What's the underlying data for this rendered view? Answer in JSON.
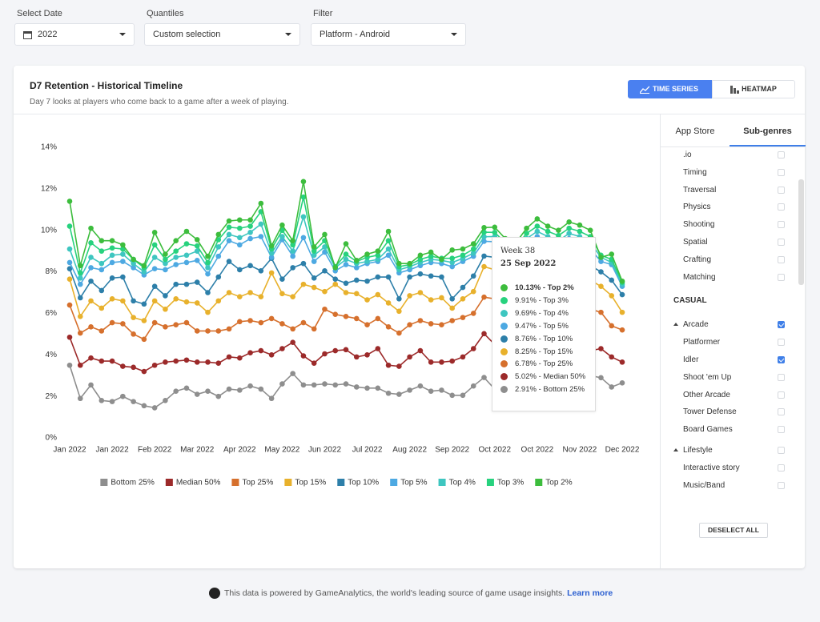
{
  "filters": [
    {
      "label": "Select Date",
      "value": "2022"
    },
    {
      "label": "Quantiles",
      "value": "Custom selection"
    },
    {
      "label": "Filter",
      "value": "Platform - Android"
    }
  ],
  "card": {
    "title": "D7 Retention - Historical Timeline",
    "subtitle": "Day 7 looks at players who come back to a game after a week of playing.",
    "buttons": [
      "TIME SERIES",
      "HEATMAP"
    ]
  },
  "chart_data": {
    "type": "line",
    "categories": [
      "Jan 2022",
      null,
      null,
      null,
      "Jan 2022",
      null,
      null,
      null,
      "Feb 2022",
      null,
      null,
      null,
      "Mar 2022",
      null,
      null,
      null,
      "Apr 2022",
      null,
      null,
      null,
      "May 2022",
      null,
      null,
      null,
      "Jun 2022",
      null,
      null,
      null,
      "Jul 2022",
      null,
      null,
      null,
      "Aug 2022",
      null,
      null,
      null,
      "Sep 2022",
      null,
      null,
      null,
      "Oct 2022",
      null,
      null,
      null,
      "Oct 2022",
      null,
      null,
      null,
      "Nov 2022",
      null,
      null,
      null,
      "Dec 2022"
    ],
    "ylim": [
      0,
      14
    ],
    "yticks": [
      {
        "value": 0,
        "label": "0%"
      },
      {
        "value": 2,
        "label": "2%"
      },
      {
        "value": 4,
        "label": "4%"
      },
      {
        "value": 6,
        "label": "6%"
      },
      {
        "value": 8,
        "label": "8%"
      },
      {
        "value": 10,
        "label": "10%"
      },
      {
        "value": 12,
        "label": "12%"
      },
      {
        "value": 14,
        "label": "14%"
      }
    ],
    "grid": false,
    "legend": "bottom",
    "series": [
      {
        "name": "Bottom 25%",
        "color": "#8e8e8e",
        "values": [
          3.5,
          1.9,
          2.55,
          1.8,
          1.75,
          2.0,
          1.75,
          1.55,
          1.45,
          1.8,
          2.25,
          2.4,
          2.1,
          2.25,
          2.0,
          2.35,
          2.3,
          2.5,
          2.35,
          1.9,
          2.6,
          3.1,
          2.55,
          2.55,
          2.6,
          2.55,
          2.6,
          2.45,
          2.4,
          2.4,
          2.15,
          2.1,
          2.3,
          2.5,
          2.25,
          2.3,
          2.05,
          2.05,
          2.5,
          2.91,
          2.35,
          2.5,
          2.4,
          2.6,
          2.75,
          2.65,
          2.5,
          2.7,
          2.6,
          3.0,
          2.9,
          2.45,
          2.65
        ]
      },
      {
        "name": "Median 50%",
        "color": "#9c2a2a",
        "values": [
          4.85,
          3.5,
          3.85,
          3.7,
          3.7,
          3.45,
          3.4,
          3.2,
          3.5,
          3.65,
          3.7,
          3.75,
          3.65,
          3.65,
          3.6,
          3.9,
          3.85,
          4.1,
          4.2,
          4.0,
          4.3,
          4.6,
          3.95,
          3.6,
          4.05,
          4.2,
          4.25,
          3.9,
          4.0,
          4.3,
          3.5,
          3.45,
          3.9,
          4.2,
          3.65,
          3.65,
          3.7,
          3.9,
          4.3,
          5.02,
          4.5,
          4.3,
          4.1,
          4.4,
          4.6,
          4.5,
          4.3,
          4.5,
          4.4,
          4.2,
          4.3,
          3.9,
          3.65
        ]
      },
      {
        "name": "Top 25%",
        "color": "#d6702d",
        "values": [
          6.4,
          5.05,
          5.35,
          5.15,
          5.55,
          5.5,
          5.0,
          4.75,
          5.55,
          5.35,
          5.45,
          5.55,
          5.15,
          5.15,
          5.15,
          5.25,
          5.6,
          5.65,
          5.55,
          5.75,
          5.5,
          5.25,
          5.55,
          5.25,
          6.2,
          5.95,
          5.85,
          5.75,
          5.45,
          5.75,
          5.35,
          5.05,
          5.45,
          5.65,
          5.5,
          5.45,
          5.65,
          5.8,
          6.0,
          6.78,
          6.7,
          6.3,
          6.1,
          6.5,
          6.8,
          6.6,
          6.4,
          6.7,
          6.5,
          6.2,
          6.05,
          5.4,
          5.2
        ]
      },
      {
        "name": "Top 15%",
        "color": "#e8b12c",
        "values": [
          7.65,
          5.85,
          6.6,
          6.25,
          6.7,
          6.6,
          5.8,
          5.65,
          6.6,
          6.2,
          6.7,
          6.55,
          6.5,
          6.05,
          6.6,
          7.0,
          6.8,
          7.0,
          6.8,
          7.95,
          6.95,
          6.8,
          7.4,
          7.25,
          7.05,
          7.4,
          7.0,
          6.95,
          6.65,
          6.9,
          6.5,
          6.1,
          6.85,
          7.0,
          6.65,
          6.75,
          6.25,
          6.7,
          7.05,
          8.25,
          8.1,
          7.6,
          7.4,
          7.9,
          8.2,
          8.0,
          7.8,
          8.1,
          7.9,
          7.6,
          7.3,
          6.85,
          6.05
        ]
      },
      {
        "name": "Top 10%",
        "color": "#2d7fa9",
        "values": [
          8.15,
          6.75,
          7.55,
          7.1,
          7.7,
          7.75,
          6.6,
          6.45,
          7.3,
          6.85,
          7.4,
          7.4,
          7.5,
          7.0,
          7.75,
          8.5,
          8.1,
          8.3,
          8.05,
          8.65,
          7.65,
          8.2,
          8.4,
          7.7,
          8.05,
          7.65,
          7.45,
          7.6,
          7.55,
          7.75,
          7.75,
          6.7,
          7.75,
          7.9,
          7.8,
          7.75,
          6.7,
          7.25,
          7.8,
          8.76,
          8.7,
          8.3,
          8.1,
          8.6,
          8.9,
          8.7,
          8.5,
          8.8,
          8.65,
          8.3,
          8.0,
          7.6,
          6.9
        ]
      },
      {
        "name": "Top 5%",
        "color": "#4da9e2",
        "values": [
          8.45,
          7.4,
          8.2,
          8.1,
          8.45,
          8.5,
          8.2,
          7.85,
          8.15,
          8.1,
          8.35,
          8.45,
          8.55,
          7.9,
          8.75,
          9.5,
          9.3,
          9.6,
          9.7,
          8.7,
          9.55,
          8.75,
          9.65,
          8.5,
          8.95,
          8.05,
          8.35,
          8.2,
          8.4,
          8.5,
          8.8,
          7.95,
          8.1,
          8.3,
          8.45,
          8.4,
          8.25,
          8.5,
          8.75,
          9.47,
          9.45,
          9.0,
          8.85,
          9.4,
          9.7,
          9.45,
          9.3,
          9.6,
          9.45,
          9.1,
          8.5,
          8.35,
          7.3
        ]
      },
      {
        "name": "Top 4%",
        "color": "#3ec6c0",
        "values": [
          9.1,
          7.7,
          8.7,
          8.4,
          8.8,
          8.85,
          8.4,
          8.0,
          8.7,
          8.4,
          8.7,
          8.8,
          9.0,
          8.2,
          9.2,
          9.8,
          9.65,
          9.9,
          10.3,
          8.9,
          9.7,
          9.0,
          10.65,
          8.8,
          9.2,
          8.2,
          8.6,
          8.4,
          8.5,
          8.6,
          9.1,
          8.1,
          8.25,
          8.45,
          8.6,
          8.55,
          8.45,
          8.65,
          8.9,
          9.69,
          9.7,
          9.2,
          9.05,
          9.6,
          9.95,
          9.7,
          9.5,
          9.85,
          9.7,
          9.4,
          8.7,
          8.45,
          7.4
        ]
      },
      {
        "name": "Top 3%",
        "color": "#27d27e",
        "values": [
          10.2,
          7.95,
          9.4,
          9.0,
          9.15,
          9.1,
          8.6,
          8.2,
          9.3,
          8.6,
          9.0,
          9.35,
          9.25,
          8.45,
          9.55,
          10.15,
          10.1,
          10.2,
          10.9,
          9.1,
          10.0,
          9.3,
          11.6,
          9.0,
          9.5,
          8.25,
          8.85,
          8.5,
          8.7,
          8.8,
          9.5,
          8.25,
          8.35,
          8.6,
          8.75,
          8.65,
          8.65,
          8.8,
          9.1,
          9.91,
          9.9,
          9.4,
          9.2,
          9.85,
          10.2,
          9.95,
          9.75,
          10.1,
          9.95,
          9.7,
          8.8,
          8.6,
          7.5
        ]
      },
      {
        "name": "Top 2%",
        "color": "#3dbd3d",
        "values": [
          11.4,
          8.3,
          10.1,
          9.5,
          9.5,
          9.3,
          8.6,
          8.3,
          9.9,
          8.85,
          9.5,
          9.95,
          9.55,
          8.75,
          9.8,
          10.45,
          10.5,
          10.5,
          11.3,
          9.25,
          10.25,
          9.5,
          12.35,
          9.2,
          9.8,
          8.2,
          9.35,
          8.55,
          8.85,
          9.0,
          9.95,
          8.4,
          8.4,
          8.8,
          8.95,
          8.6,
          9.05,
          9.1,
          9.35,
          10.13,
          10.15,
          9.6,
          9.4,
          10.1,
          10.55,
          10.2,
          10.0,
          10.4,
          10.25,
          10.0,
          8.7,
          8.85,
          7.55
        ]
      }
    ]
  },
  "tooltip": {
    "title": "Week 38",
    "date": "25 Sep 2022",
    "items": [
      "10.13% - Top 2%",
      "9.91% - Top 3%",
      "9.69% - Top 4%",
      "9.47% - Top 5%",
      "8.76% - Top 10%",
      "8.25% - Top 15%",
      "6.78% - Top 25%",
      "5.02% - Median 50%",
      "2.91% - Bottom 25%"
    ]
  },
  "sidebar": {
    "tabs": [
      "App Store",
      "Sub-genres"
    ],
    "sections": [
      {
        "items": [
          {
            "label": ".io",
            "checked": false
          },
          {
            "label": "Timing",
            "checked": false
          },
          {
            "label": "Traversal",
            "checked": false
          },
          {
            "label": "Physics",
            "checked": false
          },
          {
            "label": "Shooting",
            "checked": false
          },
          {
            "label": "Spatial",
            "checked": false
          },
          {
            "label": "Crafting",
            "checked": false
          },
          {
            "label": "Matching",
            "checked": false
          }
        ]
      },
      {
        "heading": "CASUAL",
        "items": [
          {
            "label": "Arcade",
            "checked": true,
            "group": true
          },
          {
            "label": "Platformer",
            "checked": false
          },
          {
            "label": "Idler",
            "checked": true
          },
          {
            "label": "Shoot 'em Up",
            "checked": false
          },
          {
            "label": "Other Arcade",
            "checked": false
          },
          {
            "label": "Tower Defense",
            "checked": false
          },
          {
            "label": "Board Games",
            "checked": false
          },
          {
            "label": "Lifestyle",
            "checked": false,
            "group": true
          },
          {
            "label": "Interactive story",
            "checked": false
          },
          {
            "label": "Music/Band",
            "checked": false
          }
        ]
      }
    ],
    "button": "DESELECT ALL"
  },
  "footer": {
    "text": "This data is powered by GameAnalytics, the world's leading source of game usage insights.",
    "link": "Learn more"
  }
}
